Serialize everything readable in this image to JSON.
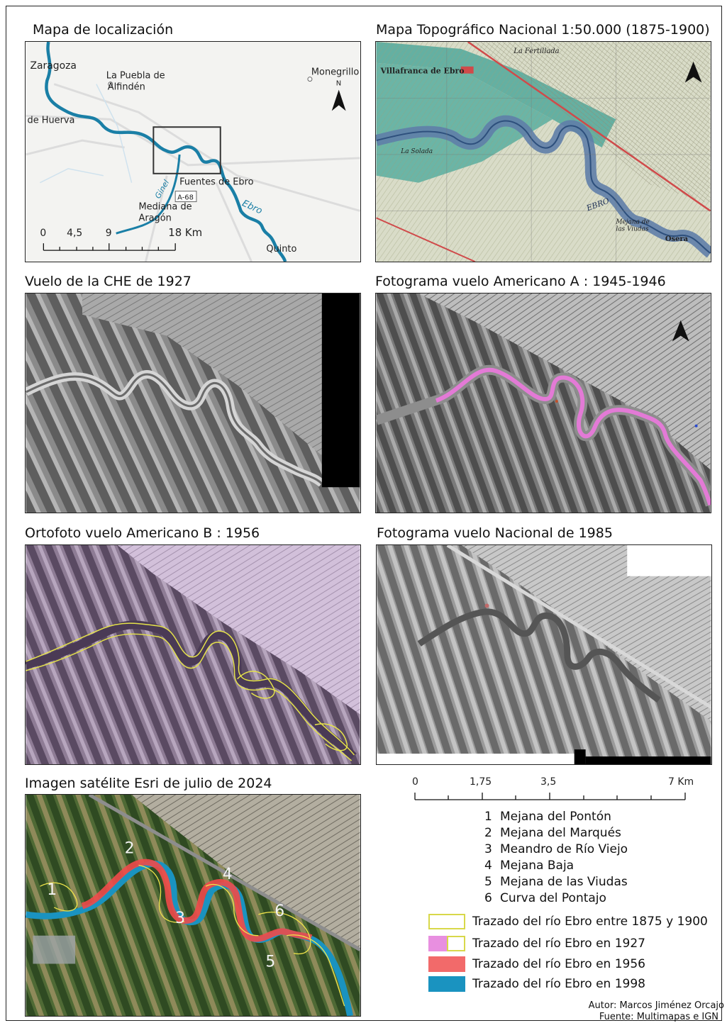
{
  "panels": {
    "p1": {
      "title": "Mapa de localización"
    },
    "p2": {
      "title": "Mapa Topográfico Nacional 1:50.000 (1875-1900)"
    },
    "p3": {
      "title": "Vuelo de la CHE de 1927"
    },
    "p4": {
      "title": "Fotograma vuelo Americano A : 1945-1946"
    },
    "p5": {
      "title": "Ortofoto vuelo Americano B : 1956"
    },
    "p6": {
      "title": "Fotograma vuelo Nacional de 1985"
    },
    "p7": {
      "title": "Imagen satélite Esri de julio de 2024"
    }
  },
  "locmap": {
    "places": {
      "zaragoza": "Zaragoza",
      "puebla": "La Puebla de",
      "puebla2": "Alfindén",
      "monegrillo": "Monegrillo",
      "huerva": "de Huerva",
      "fuentes": "Fuentes de Ebro",
      "mediana": "Mediana de",
      "mediana2": "Aragón",
      "quinto": "Quinto",
      "ginel": "Ginel",
      "ebro": "Ebro",
      "road": "A-68"
    },
    "north": "N",
    "scale": {
      "t0": "0",
      "t1": "4,5",
      "t2": "9",
      "t3": "18 Km"
    }
  },
  "topo": {
    "labels": {
      "villafranca": "Villafranca de Ebro",
      "fertillada": "La Fertillada",
      "solada": "La Solada",
      "ebro": "EBRO",
      "mejana": "Mejana de",
      "mejana2": "las Viudas",
      "osera": "Osera"
    }
  },
  "satellite": {
    "numbers": [
      "1",
      "2",
      "3",
      "4",
      "5",
      "6"
    ]
  },
  "scale_main": {
    "t0": "0",
    "t1": "1,75",
    "t2": "3,5",
    "t3": "7 Km"
  },
  "places_list": [
    {
      "num": "1",
      "name": "Mejana del Pontón"
    },
    {
      "num": "2",
      "name": "Mejana del Marqués"
    },
    {
      "num": "3",
      "name": "Meandro de Río Viejo"
    },
    {
      "num": "4",
      "name": "Mejana Baja"
    },
    {
      "num": "5",
      "name": "Mejana de las Viudas"
    },
    {
      "num": "6",
      "name": "Curva del Pontajo"
    }
  ],
  "legend": [
    {
      "label": "Trazado del río Ebro entre 1875 y 1900",
      "color": "#ffffff",
      "border": "#d8d84a"
    },
    {
      "label": "Trazado del río Ebro en 1927",
      "color": "#e88fe0",
      "border": "#d8d84a"
    },
    {
      "label": "Trazado del río Ebro en 1956",
      "color": "#f26a6a",
      "border": "#f26a6a"
    },
    {
      "label": "Trazado del río Ebro en 1998",
      "color": "#1a93c0",
      "border": "#1a93c0"
    }
  ],
  "credits": {
    "author": "Autor: Marcos Jiménez Orcajo",
    "source": "Fuente: Multimapas e IGN"
  }
}
